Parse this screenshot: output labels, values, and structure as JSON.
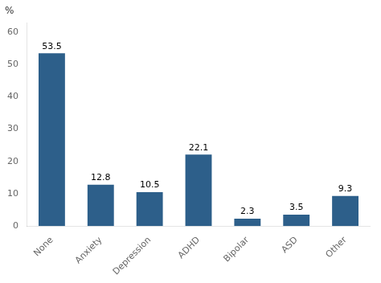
{
  "chart_data": {
    "type": "bar",
    "ylabel": "%",
    "categories": [
      "None",
      "Anxiety",
      "Depression",
      "ADHD",
      "Bipolar",
      "ASD",
      "Other"
    ],
    "values": [
      53.5,
      12.8,
      10.5,
      22.1,
      2.3,
      3.5,
      9.3
    ],
    "color": "#2d5f8a",
    "ylim": [
      0,
      63
    ],
    "yticks": [
      0,
      10,
      20,
      30,
      40,
      50,
      60
    ],
    "grid": false,
    "data_labels": true
  }
}
